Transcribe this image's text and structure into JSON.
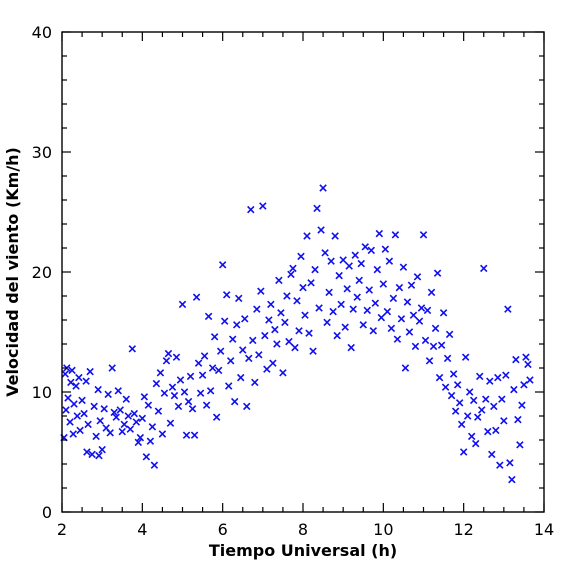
{
  "chart_data": {
    "type": "scatter",
    "title": "",
    "xlabel": "Tiempo Universal (h)",
    "ylabel": "Velocidad del viento (Km/h)",
    "xlim": [
      2,
      14
    ],
    "ylim": [
      0,
      40
    ],
    "x_major_ticks": [
      2,
      4,
      6,
      8,
      10,
      12,
      14
    ],
    "y_major_ticks": [
      0,
      10,
      20,
      30,
      40
    ],
    "x_tick_labels": [
      "2",
      "4",
      "6",
      "8",
      "10",
      "12",
      "14"
    ],
    "y_tick_labels": [
      "0",
      "10",
      "20",
      "30",
      "40"
    ],
    "x_minor_step": 0.5,
    "y_minor_step": 2,
    "marker": "x",
    "point_color": "#1010ee",
    "grid": false,
    "legend": "none",
    "series": [
      {
        "points": [
          [
            2.05,
            6.2
          ],
          [
            2.08,
            11.5
          ],
          [
            2.1,
            8.5
          ],
          [
            2.12,
            12.0
          ],
          [
            2.15,
            9.5
          ],
          [
            2.2,
            7.5
          ],
          [
            2.22,
            10.8
          ],
          [
            2.25,
            11.8
          ],
          [
            2.28,
            6.5
          ],
          [
            2.3,
            9.0
          ],
          [
            2.35,
            10.5
          ],
          [
            2.38,
            8.0
          ],
          [
            2.42,
            11.2
          ],
          [
            2.45,
            6.8
          ],
          [
            2.5,
            9.3
          ],
          [
            2.55,
            8.2
          ],
          [
            2.6,
            10.9
          ],
          [
            2.62,
            5.0
          ],
          [
            2.65,
            7.3
          ],
          [
            2.7,
            11.7
          ],
          [
            2.75,
            4.8
          ],
          [
            2.8,
            8.8
          ],
          [
            2.85,
            6.3
          ],
          [
            2.9,
            10.2
          ],
          [
            2.92,
            4.7
          ],
          [
            2.95,
            7.6
          ],
          [
            3.0,
            5.2
          ],
          [
            3.05,
            8.6
          ],
          [
            3.1,
            7.0
          ],
          [
            3.15,
            9.8
          ],
          [
            3.2,
            6.6
          ],
          [
            3.25,
            12.0
          ],
          [
            3.3,
            8.3
          ],
          [
            3.35,
            7.9
          ],
          [
            3.4,
            10.1
          ],
          [
            3.45,
            8.5
          ],
          [
            3.5,
            6.7
          ],
          [
            3.55,
            7.3
          ],
          [
            3.6,
            9.4
          ],
          [
            3.65,
            8.0
          ],
          [
            3.7,
            6.9
          ],
          [
            3.75,
            13.6
          ],
          [
            3.8,
            8.2
          ],
          [
            3.85,
            7.5
          ],
          [
            3.9,
            5.8
          ],
          [
            3.95,
            6.2
          ],
          [
            4.0,
            7.8
          ],
          [
            4.05,
            9.6
          ],
          [
            4.1,
            4.6
          ],
          [
            4.15,
            8.9
          ],
          [
            4.2,
            5.9
          ],
          [
            4.25,
            7.1
          ],
          [
            4.3,
            3.9
          ],
          [
            4.35,
            10.7
          ],
          [
            4.4,
            8.4
          ],
          [
            4.45,
            11.6
          ],
          [
            4.5,
            6.5
          ],
          [
            4.55,
            9.9
          ],
          [
            4.6,
            12.6
          ],
          [
            4.65,
            13.2
          ],
          [
            4.7,
            7.4
          ],
          [
            4.75,
            10.4
          ],
          [
            4.8,
            9.7
          ],
          [
            4.85,
            12.9
          ],
          [
            4.9,
            8.8
          ],
          [
            4.95,
            11.0
          ],
          [
            5.0,
            17.3
          ],
          [
            5.05,
            10.0
          ],
          [
            5.1,
            6.4
          ],
          [
            5.15,
            9.2
          ],
          [
            5.2,
            11.3
          ],
          [
            5.25,
            8.6
          ],
          [
            5.3,
            6.4
          ],
          [
            5.35,
            17.9
          ],
          [
            5.4,
            12.4
          ],
          [
            5.45,
            9.9
          ],
          [
            5.5,
            11.4
          ],
          [
            5.55,
            13.0
          ],
          [
            5.6,
            8.9
          ],
          [
            5.65,
            16.3
          ],
          [
            5.7,
            10.1
          ],
          [
            5.75,
            12.0
          ],
          [
            5.8,
            14.6
          ],
          [
            5.85,
            7.9
          ],
          [
            5.9,
            11.8
          ],
          [
            5.95,
            13.4
          ],
          [
            6.0,
            20.6
          ],
          [
            6.05,
            15.9
          ],
          [
            6.1,
            18.1
          ],
          [
            6.15,
            10.5
          ],
          [
            6.2,
            12.6
          ],
          [
            6.25,
            14.4
          ],
          [
            6.3,
            9.2
          ],
          [
            6.35,
            15.6
          ],
          [
            6.4,
            17.8
          ],
          [
            6.45,
            11.2
          ],
          [
            6.5,
            13.5
          ],
          [
            6.55,
            16.1
          ],
          [
            6.6,
            8.8
          ],
          [
            6.65,
            12.8
          ],
          [
            6.7,
            25.2
          ],
          [
            6.75,
            14.3
          ],
          [
            6.8,
            10.8
          ],
          [
            6.85,
            16.9
          ],
          [
            6.9,
            13.1
          ],
          [
            6.95,
            18.4
          ],
          [
            7.0,
            25.5
          ],
          [
            7.05,
            14.7
          ],
          [
            7.1,
            11.9
          ],
          [
            7.15,
            16.0
          ],
          [
            7.2,
            17.3
          ],
          [
            7.25,
            12.4
          ],
          [
            7.3,
            15.2
          ],
          [
            7.35,
            14.0
          ],
          [
            7.4,
            19.3
          ],
          [
            7.45,
            16.6
          ],
          [
            7.5,
            11.6
          ],
          [
            7.55,
            15.8
          ],
          [
            7.6,
            18.0
          ],
          [
            7.65,
            14.2
          ],
          [
            7.7,
            19.8
          ],
          [
            7.75,
            20.3
          ],
          [
            7.8,
            13.7
          ],
          [
            7.85,
            17.6
          ],
          [
            7.9,
            15.1
          ],
          [
            7.95,
            21.3
          ],
          [
            8.0,
            18.7
          ],
          [
            8.05,
            16.4
          ],
          [
            8.1,
            23.0
          ],
          [
            8.15,
            14.9
          ],
          [
            8.2,
            19.1
          ],
          [
            8.25,
            13.4
          ],
          [
            8.3,
            20.2
          ],
          [
            8.35,
            25.3
          ],
          [
            8.4,
            17.0
          ],
          [
            8.45,
            23.5
          ],
          [
            8.5,
            27.0
          ],
          [
            8.55,
            21.6
          ],
          [
            8.6,
            15.8
          ],
          [
            8.65,
            18.3
          ],
          [
            8.7,
            20.9
          ],
          [
            8.75,
            16.7
          ],
          [
            8.8,
            23.0
          ],
          [
            8.85,
            14.7
          ],
          [
            8.9,
            19.7
          ],
          [
            8.95,
            17.3
          ],
          [
            9.0,
            21.0
          ],
          [
            9.05,
            15.4
          ],
          [
            9.1,
            18.6
          ],
          [
            9.15,
            20.5
          ],
          [
            9.2,
            13.7
          ],
          [
            9.25,
            16.9
          ],
          [
            9.3,
            21.4
          ],
          [
            9.35,
            17.9
          ],
          [
            9.4,
            19.3
          ],
          [
            9.45,
            20.7
          ],
          [
            9.5,
            15.6
          ],
          [
            9.55,
            22.1
          ],
          [
            9.6,
            16.8
          ],
          [
            9.65,
            18.5
          ],
          [
            9.7,
            21.8
          ],
          [
            9.75,
            15.1
          ],
          [
            9.8,
            17.4
          ],
          [
            9.85,
            20.2
          ],
          [
            9.9,
            23.2
          ],
          [
            9.95,
            16.2
          ],
          [
            10.0,
            19.0
          ],
          [
            10.05,
            21.9
          ],
          [
            10.1,
            16.7
          ],
          [
            10.15,
            20.9
          ],
          [
            10.2,
            15.3
          ],
          [
            10.25,
            17.8
          ],
          [
            10.3,
            23.1
          ],
          [
            10.35,
            14.4
          ],
          [
            10.4,
            18.7
          ],
          [
            10.45,
            16.1
          ],
          [
            10.5,
            20.4
          ],
          [
            10.55,
            12.0
          ],
          [
            10.6,
            17.5
          ],
          [
            10.65,
            15.0
          ],
          [
            10.7,
            18.9
          ],
          [
            10.75,
            16.4
          ],
          [
            10.8,
            13.8
          ],
          [
            10.85,
            19.6
          ],
          [
            10.9,
            15.9
          ],
          [
            10.95,
            17.0
          ],
          [
            11.0,
            23.1
          ],
          [
            11.05,
            14.3
          ],
          [
            11.1,
            16.8
          ],
          [
            11.15,
            12.6
          ],
          [
            11.2,
            18.3
          ],
          [
            11.25,
            13.8
          ],
          [
            11.3,
            15.3
          ],
          [
            11.35,
            19.9
          ],
          [
            11.4,
            11.2
          ],
          [
            11.45,
            13.9
          ],
          [
            11.5,
            16.6
          ],
          [
            11.55,
            10.4
          ],
          [
            11.6,
            12.8
          ],
          [
            11.65,
            14.8
          ],
          [
            11.7,
            9.7
          ],
          [
            11.75,
            11.5
          ],
          [
            11.8,
            8.4
          ],
          [
            11.85,
            10.6
          ],
          [
            11.9,
            9.1
          ],
          [
            11.95,
            7.3
          ],
          [
            12.0,
            5.0
          ],
          [
            12.05,
            12.9
          ],
          [
            12.1,
            8.0
          ],
          [
            12.15,
            10.0
          ],
          [
            12.2,
            6.3
          ],
          [
            12.25,
            9.3
          ],
          [
            12.3,
            5.7
          ],
          [
            12.35,
            7.9
          ],
          [
            12.4,
            11.3
          ],
          [
            12.45,
            8.5
          ],
          [
            12.5,
            20.3
          ],
          [
            12.55,
            9.4
          ],
          [
            12.6,
            6.7
          ],
          [
            12.65,
            10.9
          ],
          [
            12.7,
            4.8
          ],
          [
            12.75,
            8.8
          ],
          [
            12.8,
            6.8
          ],
          [
            12.85,
            11.2
          ],
          [
            12.9,
            3.9
          ],
          [
            12.95,
            9.4
          ],
          [
            13.0,
            7.6
          ],
          [
            13.05,
            11.4
          ],
          [
            13.1,
            16.9
          ],
          [
            13.15,
            4.1
          ],
          [
            13.2,
            2.7
          ],
          [
            13.25,
            10.2
          ],
          [
            13.3,
            12.7
          ],
          [
            13.35,
            7.7
          ],
          [
            13.4,
            5.6
          ],
          [
            13.45,
            8.9
          ],
          [
            13.5,
            10.6
          ],
          [
            13.55,
            12.9
          ],
          [
            13.6,
            12.3
          ],
          [
            13.65,
            11.0
          ]
        ]
      }
    ]
  }
}
